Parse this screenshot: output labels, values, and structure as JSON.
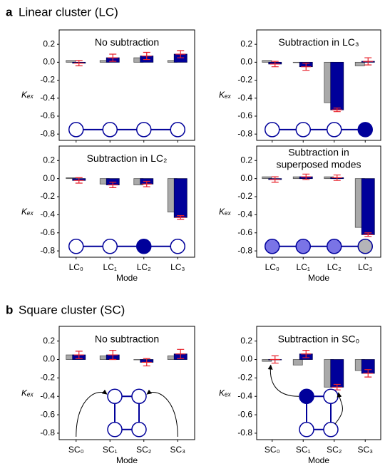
{
  "sections": [
    {
      "letter": "a",
      "title": "Linear cluster (LC)"
    },
    {
      "letter": "b",
      "title": "Square cluster (SC)"
    }
  ],
  "chart_data": [
    {
      "type": "bar",
      "title": [
        "No subtraction"
      ],
      "y_label": "Kₑₓ",
      "categories": [
        null,
        null,
        null,
        null
      ],
      "ylim": [
        -0.87,
        0.36
      ],
      "yticks": [
        0.2,
        {
          "value": 0,
          "label": "0.0"
        },
        -0.2,
        -0.4,
        -0.6,
        -0.8
      ],
      "error_color": "#e8202a",
      "series": [
        {
          "color": "#a9a9a9",
          "values": [
            0.02,
            0.02,
            0.05,
            0.02
          ]
        },
        {
          "color": "#00009a",
          "values": [
            -0.01,
            0.05,
            0.07,
            0.09
          ],
          "errors": [
            0.03,
            0.04,
            0.04,
            0.04
          ]
        }
      ]
    },
    {
      "type": "bar",
      "title": [
        "Subtraction in LC₃"
      ],
      "y_label": "Kₑₓ",
      "categories": [
        null,
        null,
        null,
        null
      ],
      "ylim": [
        -0.87,
        0.36
      ],
      "yticks": [
        0.2,
        {
          "value": 0,
          "label": "0.0"
        },
        -0.2,
        -0.4,
        -0.6,
        -0.8
      ],
      "error_color": "#e8202a",
      "series": [
        {
          "color": "#a9a9a9",
          "values": [
            0.02,
            0.0,
            -0.45,
            -0.04
          ]
        },
        {
          "color": "#00009a",
          "values": [
            -0.02,
            -0.05,
            -0.53,
            0.01
          ],
          "errors": [
            0.03,
            0.04,
            0.02,
            0.04
          ]
        }
      ]
    },
    {
      "type": "bar",
      "title": [
        "Subtraction in LC₂"
      ],
      "y_label": "Kₑₓ",
      "x_label": "Mode",
      "categories": [
        "LC₀",
        "LC₁",
        "LC₂",
        "LC₃"
      ],
      "ylim": [
        -0.87,
        0.36
      ],
      "yticks": [
        0.2,
        {
          "value": 0,
          "label": "0.0"
        },
        -0.2,
        -0.4,
        -0.6,
        -0.8
      ],
      "error_color": "#e8202a",
      "series": [
        {
          "color": "#a9a9a9",
          "values": [
            0.01,
            -0.06,
            -0.07,
            -0.37
          ]
        },
        {
          "color": "#00009a",
          "values": [
            -0.02,
            -0.07,
            -0.06,
            -0.43
          ],
          "errors": [
            0.03,
            0.03,
            0.03,
            0.02
          ]
        }
      ]
    },
    {
      "type": "bar",
      "title": [
        "Subtraction in",
        "superposed modes"
      ],
      "y_label": "Kₑₓ",
      "x_label": "Mode",
      "categories": [
        "LC₀",
        "LC₁",
        "LC₂",
        "LC₃"
      ],
      "ylim": [
        -0.87,
        0.36
      ],
      "yticks": [
        0.2,
        {
          "value": 0,
          "label": "0.0"
        },
        -0.2,
        -0.4,
        -0.6,
        -0.8
      ],
      "error_color": "#e8202a",
      "series": [
        {
          "color": "#a9a9a9",
          "values": [
            0.02,
            0.02,
            0.02,
            -0.54
          ]
        },
        {
          "color": "#00009a",
          "values": [
            -0.01,
            0.02,
            0.01,
            -0.62
          ],
          "errors": [
            0.03,
            0.03,
            0.03,
            0.02
          ]
        }
      ]
    },
    {
      "type": "bar",
      "title": [
        "No subtraction"
      ],
      "y_label": "Kₑₓ",
      "x_label": "Mode",
      "categories": [
        "SC₀",
        "SC₁",
        "SC₂",
        "SC₃"
      ],
      "ylim": [
        -0.87,
        0.36
      ],
      "yticks": [
        0.2,
        {
          "value": 0,
          "label": "0.0"
        },
        -0.2,
        -0.4,
        -0.6,
        -0.8
      ],
      "error_color": "#e8202a",
      "series": [
        {
          "color": "#a9a9a9",
          "values": [
            0.05,
            0.04,
            0.0,
            0.04
          ]
        },
        {
          "color": "#00009a",
          "values": [
            0.05,
            0.05,
            -0.03,
            0.06
          ],
          "errors": [
            0.04,
            0.05,
            0.04,
            0.05
          ]
        }
      ]
    },
    {
      "type": "bar",
      "title": [
        "Subtraction in SC₀"
      ],
      "y_label": "Kₑₓ",
      "x_label": "Mode",
      "categories": [
        "SC₀",
        "SC₁",
        "SC₂",
        "SC₃"
      ],
      "ylim": [
        -0.87,
        0.36
      ],
      "yticks": [
        0.2,
        {
          "value": 0,
          "label": "0.0"
        },
        -0.2,
        -0.4,
        -0.6,
        -0.8
      ],
      "error_color": "#e8202a",
      "series": [
        {
          "color": "#a9a9a9",
          "values": [
            -0.02,
            -0.06,
            -0.3,
            -0.12
          ]
        },
        {
          "color": "#00009a",
          "values": [
            0.0,
            0.06,
            -0.3,
            -0.15
          ],
          "errors": [
            0.04,
            0.04,
            0.03,
            0.04
          ]
        }
      ]
    }
  ]
}
